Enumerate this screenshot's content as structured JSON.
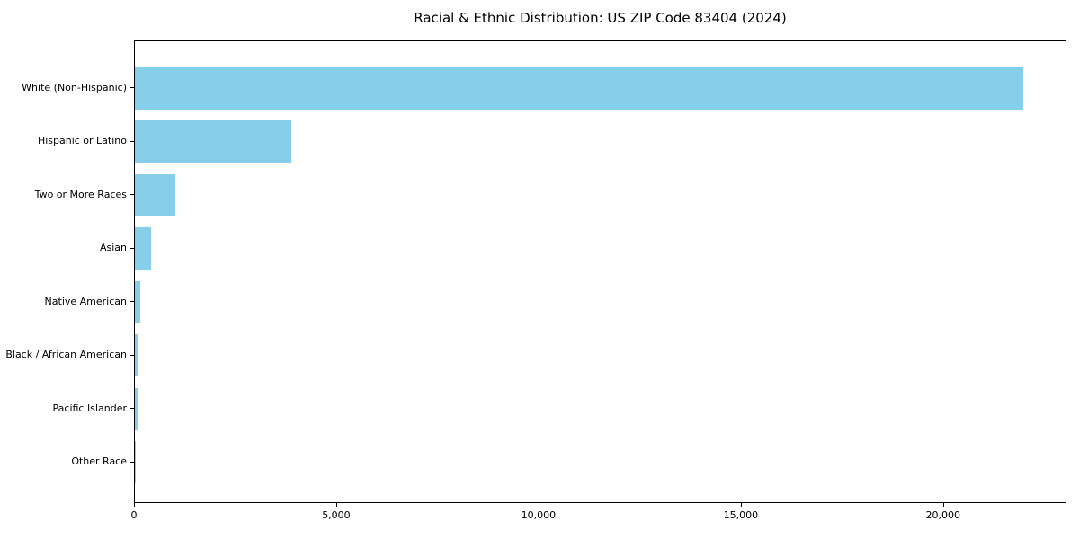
{
  "figure": {
    "background_color": "#ffffff",
    "text_color": "#000000",
    "spine_color": "#000000"
  },
  "chart_data": {
    "type": "bar",
    "orientation": "horizontal",
    "title": "Racial & Ethnic Distribution: US ZIP Code 83404 (2024)",
    "xlabel": "",
    "ylabel": "",
    "categories": [
      "White (Non-Hispanic)",
      "Hispanic or Latino",
      "Two or More Races",
      "Asian",
      "Native American",
      "Black / African American",
      "Pacific Islander",
      "Other Race"
    ],
    "values": [
      21950,
      3870,
      1000,
      400,
      130,
      70,
      60,
      10
    ],
    "bar_color": "#87CEEB",
    "xlim": [
      0,
      23050
    ],
    "x_ticks": [
      0,
      5000,
      10000,
      15000,
      20000
    ],
    "x_tick_labels": [
      "0",
      "5,000",
      "10,000",
      "15,000",
      "20,000"
    ],
    "grid": false,
    "legend": "none"
  }
}
